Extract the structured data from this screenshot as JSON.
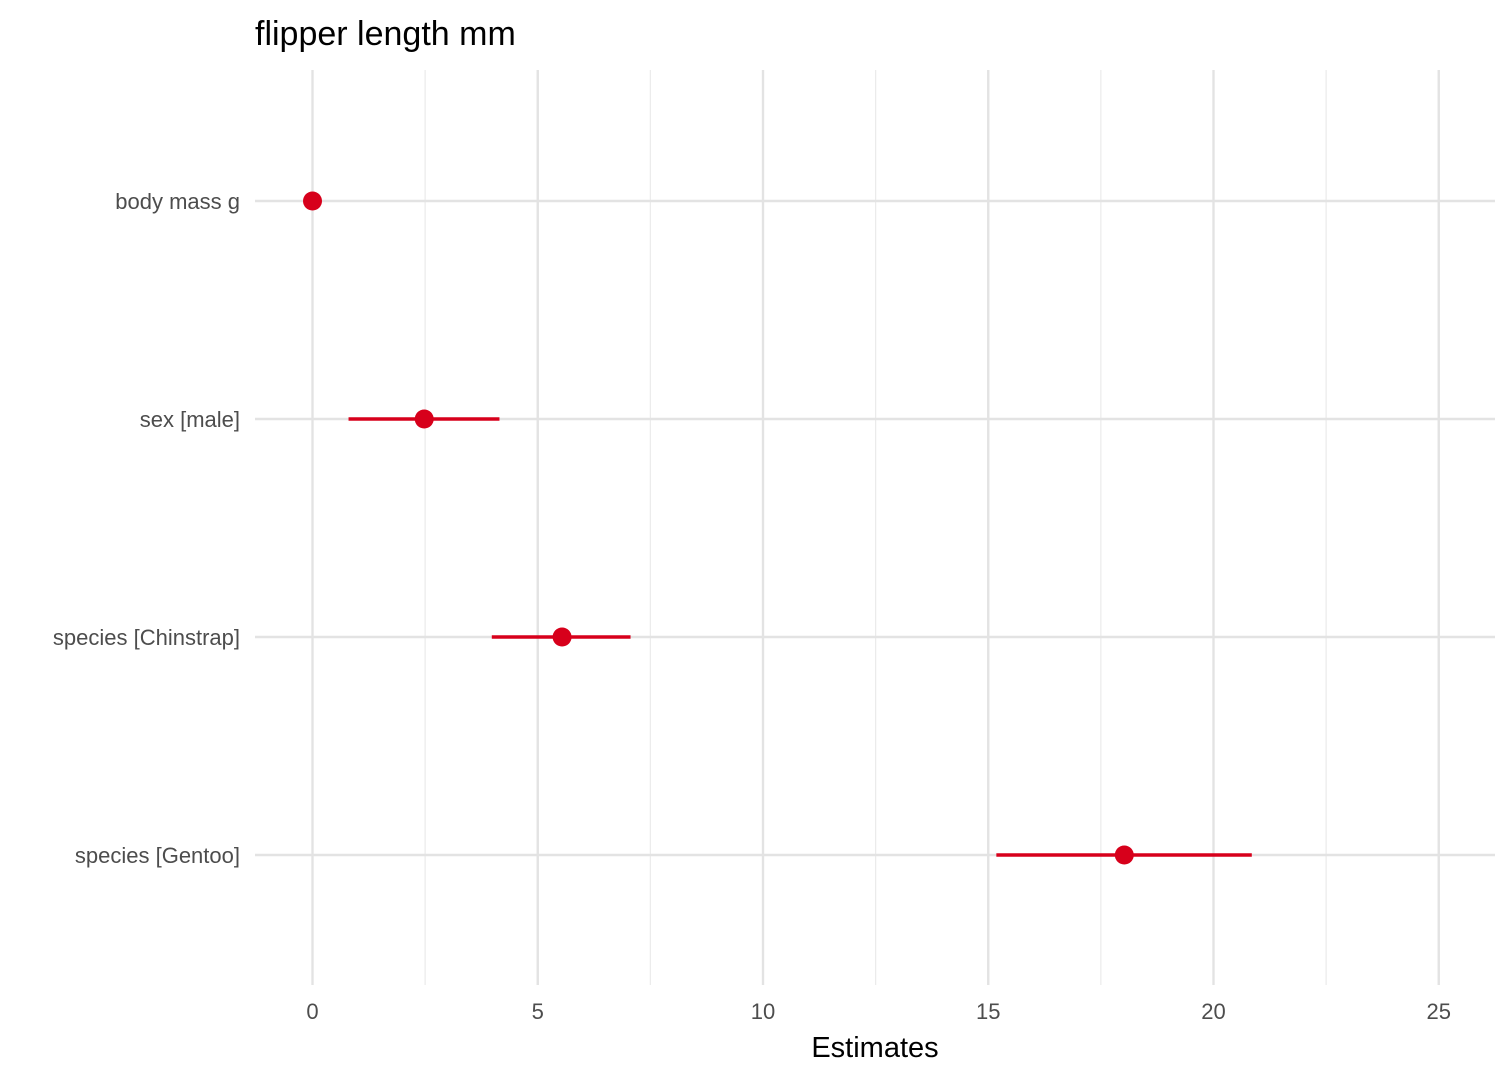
{
  "chart_data": {
    "type": "scatter",
    "subtype": "coefficient-plot",
    "title": "flipper length mm",
    "xlabel": "Estimates",
    "ylabel": "",
    "xlim": [
      -0.6,
      26
    ],
    "x_ticks": [
      0,
      5,
      10,
      15,
      20,
      25
    ],
    "x_tick_labels": [
      "0",
      "5",
      "10",
      "15",
      "20",
      "25"
    ],
    "grid": true,
    "legend": "none",
    "point_color": "#d7001b",
    "categories": [
      "body mass g",
      "sex [male]",
      "species [Chinstrap]",
      "species [Gentoo]"
    ],
    "estimates": [
      0.0,
      2.48,
      5.54,
      18.02
    ],
    "ci_low": [
      -0.01,
      0.8,
      3.98,
      15.18
    ],
    "ci_high": [
      0.01,
      4.15,
      7.06,
      20.85
    ]
  }
}
